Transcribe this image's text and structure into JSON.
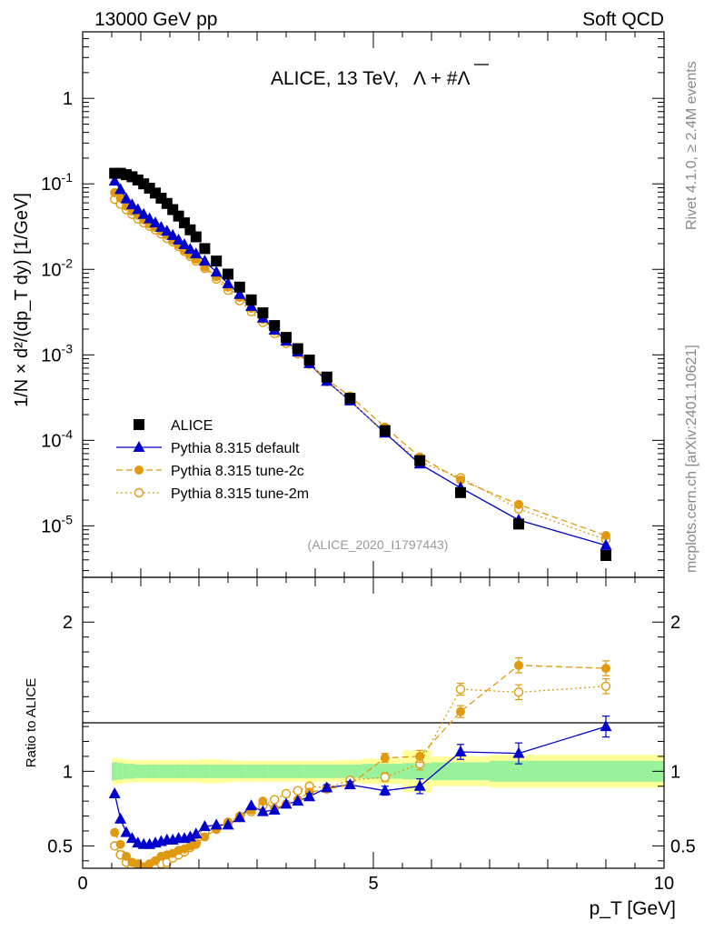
{
  "header": {
    "left": "13000 GeV pp",
    "right": "Soft QCD"
  },
  "side": {
    "rivet": "Rivet 4.1.0, ≥ 2.4M events",
    "mcplots": "mcplots.cern.ch [arXiv:2401.10621]"
  },
  "analysis_id": "(ALICE_2020_I1797443)",
  "colors": {
    "data": "#000000",
    "default": "#0000cc",
    "tune2c": "#e09a10",
    "tune2m": "#e09a10",
    "band_inner": "#99f299",
    "band_outer": "#ffff99"
  },
  "chart_data": [
    {
      "type": "scatter",
      "panel": "main",
      "title": "ALICE, 13 TeV, Λ + #Λ̄",
      "title_main": "ALICE, 13 TeV,",
      "title_particles": "Λ + #Λ",
      "xlabel": "p_T [GeV]",
      "ylabel": "1/N × d²/(dp_T dy) [1/GeV]",
      "yscale": "log",
      "xlim": [
        0,
        10
      ],
      "ylim": [
        2.5e-06,
        6
      ],
      "ytick_labels": [
        {
          "value": 1,
          "label": "1"
        },
        {
          "value": 0.1,
          "base": "10",
          "exp": "-1"
        },
        {
          "value": 0.01,
          "base": "10",
          "exp": "-2"
        },
        {
          "value": 0.001,
          "base": "10",
          "exp": "-3"
        },
        {
          "value": 0.0001,
          "base": "10",
          "exp": "-4"
        },
        {
          "value": 1e-05,
          "base": "10",
          "exp": "-5"
        }
      ],
      "legend_position": "bottom-left",
      "series": [
        {
          "name": "ALICE",
          "marker": "square",
          "x": [
            0.55,
            0.65,
            0.75,
            0.85,
            0.95,
            1.05,
            1.15,
            1.25,
            1.35,
            1.45,
            1.55,
            1.65,
            1.75,
            1.85,
            1.95,
            2.1,
            2.3,
            2.5,
            2.7,
            2.9,
            3.1,
            3.3,
            3.5,
            3.7,
            3.9,
            4.2,
            4.6,
            5.2,
            5.8,
            6.5,
            7.5,
            9.0
          ],
          "y": [
            0.133,
            0.133,
            0.128,
            0.121,
            0.111,
            0.1,
            0.089,
            0.078,
            0.068,
            0.059,
            0.05,
            0.042,
            0.035,
            0.029,
            0.024,
            0.0175,
            0.0125,
            0.0088,
            0.0062,
            0.0044,
            0.0031,
            0.0022,
            0.0016,
            0.00118,
            0.00087,
            0.00055,
            0.00031,
            0.00013,
            5.8e-05,
            2.45e-05,
            1.05e-05,
            4.5e-06
          ]
        },
        {
          "name": "Pythia 8.315 default",
          "marker": "triangle",
          "line": "solid",
          "x": [
            0.55,
            0.65,
            0.75,
            0.85,
            0.95,
            1.05,
            1.15,
            1.25,
            1.35,
            1.45,
            1.55,
            1.65,
            1.75,
            1.85,
            1.95,
            2.1,
            2.3,
            2.5,
            2.7,
            2.9,
            3.1,
            3.3,
            3.5,
            3.7,
            3.9,
            4.2,
            4.6,
            5.2,
            5.8,
            6.5,
            7.5,
            9.0
          ],
          "y": [
            0.108,
            0.086,
            0.067,
            0.057,
            0.05,
            0.044,
            0.039,
            0.035,
            0.031,
            0.028,
            0.025,
            0.022,
            0.0195,
            0.0172,
            0.0152,
            0.0125,
            0.0093,
            0.0068,
            0.0051,
            0.0037,
            0.0027,
            0.00195,
            0.00145,
            0.00108,
            0.00079,
            0.00049,
            0.00029,
            0.000122,
            5.3e-05,
            2.79e-05,
            1.17e-05,
            5.9e-06
          ]
        },
        {
          "name": "Pythia 8.315 tune-2c",
          "marker": "circle",
          "line": "dashed",
          "x": [
            0.55,
            0.65,
            0.75,
            0.85,
            0.95,
            1.05,
            1.15,
            1.25,
            1.35,
            1.45,
            1.55,
            1.65,
            1.75,
            1.85,
            1.95,
            2.1,
            2.3,
            2.5,
            2.7,
            2.9,
            3.1,
            3.3,
            3.5,
            3.7,
            3.9,
            4.2,
            4.6,
            5.2,
            5.8,
            6.5,
            7.5,
            9.0
          ],
          "y": [
            0.079,
            0.068,
            0.055,
            0.048,
            0.043,
            0.038,
            0.034,
            0.031,
            0.028,
            0.025,
            0.022,
            0.0194,
            0.0168,
            0.0149,
            0.0131,
            0.0107,
            0.0082,
            0.0062,
            0.0047,
            0.0035,
            0.0026,
            0.00191,
            0.00144,
            0.00108,
            0.00081,
            0.00051,
            0.00033,
            0.000143,
            6.4e-05,
            3.43e-05,
            1.78e-05,
            7.7e-06
          ]
        },
        {
          "name": "Pythia 8.315 tune-2m",
          "marker": "open-circle",
          "line": "dotted",
          "x": [
            0.55,
            0.65,
            0.75,
            0.85,
            0.95,
            1.05,
            1.15,
            1.25,
            1.35,
            1.45,
            1.55,
            1.65,
            1.75,
            1.85,
            1.95,
            2.1,
            2.3,
            2.5,
            2.7,
            2.9,
            3.1,
            3.3,
            3.5,
            3.7,
            3.9,
            4.2,
            4.6,
            5.2,
            5.8,
            6.5,
            7.5,
            9.0
          ],
          "y": [
            0.066,
            0.058,
            0.05,
            0.044,
            0.039,
            0.035,
            0.032,
            0.029,
            0.026,
            0.023,
            0.021,
            0.0185,
            0.0162,
            0.0142,
            0.0125,
            0.0103,
            0.0077,
            0.0057,
            0.0043,
            0.0032,
            0.0024,
            0.00178,
            0.00136,
            0.00103,
            0.00078,
            0.00049,
            0.00029,
            0.000125,
            5.6e-05,
            3.65e-05,
            1.58e-05,
            6.9e-06
          ]
        }
      ]
    },
    {
      "type": "scatter",
      "panel": "ratio",
      "ylabel": "Ratio to ALICE",
      "xlabel": "p_T [GeV]",
      "xlim": [
        0,
        10
      ],
      "ylim": [
        0.35,
        2.3
      ],
      "xtick_labels": [
        {
          "value": 0,
          "label": "0"
        },
        {
          "value": 5,
          "label": "5"
        },
        {
          "value": 10,
          "label": "10"
        }
      ],
      "ytick_labels": [
        {
          "value": 0.5,
          "label": "0.5"
        },
        {
          "value": 1,
          "label": "1"
        },
        {
          "value": 2,
          "label": "2"
        }
      ],
      "bands": {
        "edges": [
          0.5,
          0.6,
          0.7,
          0.8,
          0.9,
          1.0,
          1.1,
          1.2,
          1.3,
          1.4,
          1.5,
          1.6,
          1.7,
          1.8,
          1.9,
          2.0,
          2.2,
          2.4,
          2.6,
          2.8,
          3.0,
          3.2,
          3.4,
          3.6,
          3.8,
          4.0,
          4.4,
          4.8,
          5.5,
          6.0,
          7.0,
          8.0,
          10.0
        ],
        "inner": [
          0.06,
          0.055,
          0.05,
          0.05,
          0.045,
          0.045,
          0.045,
          0.045,
          0.045,
          0.045,
          0.045,
          0.045,
          0.045,
          0.045,
          0.045,
          0.045,
          0.045,
          0.045,
          0.045,
          0.045,
          0.045,
          0.045,
          0.045,
          0.045,
          0.045,
          0.045,
          0.045,
          0.05,
          0.055,
          0.06,
          0.07,
          0.07
        ],
        "outer": [
          0.09,
          0.085,
          0.08,
          0.075,
          0.075,
          0.075,
          0.075,
          0.075,
          0.075,
          0.075,
          0.075,
          0.075,
          0.075,
          0.075,
          0.075,
          0.08,
          0.08,
          0.075,
          0.07,
          0.07,
          0.07,
          0.07,
          0.07,
          0.07,
          0.07,
          0.07,
          0.075,
          0.085,
          0.14,
          0.1,
          0.11,
          0.11
        ]
      },
      "series": [
        {
          "name": "Pythia 8.315 default",
          "x": [
            0.55,
            0.65,
            0.75,
            0.85,
            0.95,
            1.05,
            1.15,
            1.25,
            1.35,
            1.45,
            1.55,
            1.65,
            1.75,
            1.85,
            1.95,
            2.1,
            2.3,
            2.5,
            2.7,
            2.9,
            3.1,
            3.3,
            3.5,
            3.7,
            3.9,
            4.2,
            4.6,
            5.2,
            5.8,
            6.5,
            7.5,
            9.0
          ],
          "y": [
            0.85,
            0.68,
            0.59,
            0.55,
            0.52,
            0.51,
            0.51,
            0.52,
            0.53,
            0.54,
            0.54,
            0.55,
            0.55,
            0.56,
            0.58,
            0.63,
            0.64,
            0.64,
            0.69,
            0.77,
            0.73,
            0.74,
            0.78,
            0.8,
            0.83,
            0.89,
            0.91,
            0.87,
            0.9,
            1.13,
            1.12,
            1.3
          ],
          "yerr": [
            0.01,
            0.01,
            0.01,
            0.01,
            0.01,
            0.01,
            0.01,
            0.01,
            0.01,
            0.01,
            0.01,
            0.01,
            0.01,
            0.01,
            0.01,
            0.01,
            0.01,
            0.01,
            0.01,
            0.01,
            0.01,
            0.01,
            0.01,
            0.01,
            0.02,
            0.02,
            0.02,
            0.03,
            0.05,
            0.05,
            0.07,
            0.07
          ]
        },
        {
          "name": "Pythia 8.315 tune-2c",
          "x": [
            0.55,
            0.65,
            0.75,
            0.85,
            0.95,
            1.05,
            1.15,
            1.25,
            1.35,
            1.45,
            1.55,
            1.65,
            1.75,
            1.85,
            1.95,
            2.1,
            2.3,
            2.5,
            2.7,
            2.9,
            3.1,
            3.3,
            3.5,
            3.7,
            3.9,
            4.2,
            4.6,
            5.2,
            5.8,
            6.5,
            7.5,
            9.0
          ],
          "y": [
            0.59,
            0.51,
            0.43,
            0.39,
            0.38,
            0.36,
            0.38,
            0.4,
            0.43,
            0.44,
            0.45,
            0.47,
            0.48,
            0.5,
            0.51,
            0.56,
            0.61,
            0.66,
            0.7,
            0.74,
            0.8,
            0.75,
            0.78,
            0.81,
            0.86,
            0.88,
            0.91,
            1.09,
            1.1,
            1.4,
            1.71,
            1.69
          ],
          "yerr": [
            0.01,
            0.01,
            0.01,
            0.01,
            0.01,
            0.01,
            0.01,
            0.01,
            0.01,
            0.01,
            0.01,
            0.01,
            0.01,
            0.01,
            0.01,
            0.01,
            0.01,
            0.01,
            0.01,
            0.01,
            0.01,
            0.01,
            0.01,
            0.01,
            0.02,
            0.02,
            0.02,
            0.03,
            0.04,
            0.04,
            0.05,
            0.05
          ]
        },
        {
          "name": "Pythia 8.315 tune-2m",
          "x": [
            0.55,
            0.65,
            0.75,
            0.85,
            0.95,
            1.05,
            1.15,
            1.25,
            1.35,
            1.45,
            1.55,
            1.65,
            1.75,
            1.85,
            1.95,
            2.1,
            2.3,
            2.5,
            2.7,
            2.9,
            3.1,
            3.3,
            3.5,
            3.7,
            3.9,
            4.2,
            4.6,
            5.2,
            5.8,
            6.5,
            7.5,
            9.0
          ],
          "y": [
            0.5,
            0.44,
            0.39,
            0.36,
            0.35,
            0.35,
            0.36,
            0.37,
            0.38,
            0.39,
            0.42,
            0.44,
            0.46,
            0.49,
            0.52,
            0.59,
            0.62,
            0.65,
            0.69,
            0.73,
            0.77,
            0.81,
            0.85,
            0.87,
            0.9,
            0.89,
            0.94,
            0.96,
            1.05,
            1.55,
            1.53,
            1.57
          ],
          "yerr": [
            0.01,
            0.01,
            0.01,
            0.01,
            0.01,
            0.01,
            0.01,
            0.01,
            0.01,
            0.01,
            0.01,
            0.01,
            0.01,
            0.01,
            0.01,
            0.01,
            0.01,
            0.01,
            0.01,
            0.01,
            0.01,
            0.01,
            0.01,
            0.01,
            0.02,
            0.02,
            0.02,
            0.03,
            0.04,
            0.04,
            0.05,
            0.05
          ]
        }
      ]
    }
  ]
}
